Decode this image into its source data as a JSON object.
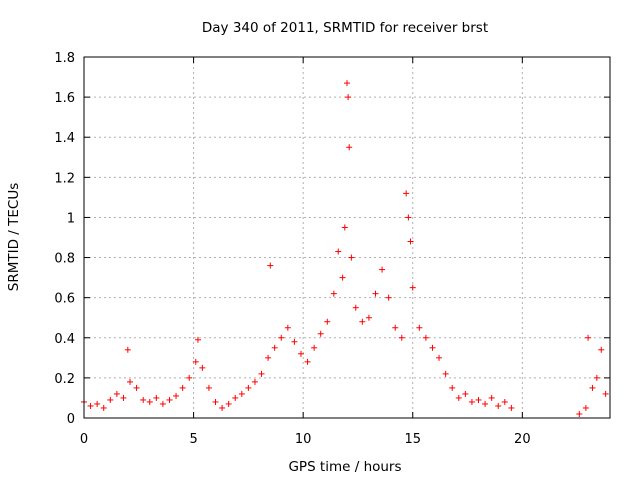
{
  "chart_data": {
    "type": "scatter",
    "title": "Day 340 of 2011, SRMTID for receiver brst",
    "xlabel": "GPS time / hours",
    "ylabel": "SRMTID / TECUs",
    "xlim": [
      0,
      24
    ],
    "ylim": [
      0,
      1.8
    ],
    "xticks": [
      0,
      5,
      10,
      15,
      20
    ],
    "xtick_labels": [
      "0",
      "5",
      "10",
      "15",
      "20"
    ],
    "yticks": [
      0,
      0.2,
      0.4,
      0.6,
      0.8,
      1,
      1.2,
      1.4,
      1.6,
      1.8
    ],
    "ytick_labels": [
      "0",
      "0.2",
      "0.4",
      "0.6",
      "0.8",
      "1",
      "1.2",
      "1.4",
      "1.6",
      "1.8"
    ],
    "grid": true,
    "marker": "+",
    "color": "#ff0000",
    "series": [
      {
        "name": "brst",
        "x": [
          0.0,
          0.3,
          0.6,
          0.9,
          1.2,
          1.5,
          1.8,
          2.0,
          2.1,
          2.4,
          2.7,
          3.0,
          3.3,
          3.6,
          3.9,
          4.2,
          4.5,
          4.8,
          5.1,
          5.2,
          5.4,
          5.7,
          6.0,
          6.3,
          6.6,
          6.9,
          7.2,
          7.5,
          7.8,
          8.1,
          8.4,
          8.5,
          8.7,
          9.0,
          9.3,
          9.6,
          9.9,
          10.2,
          10.5,
          10.8,
          11.1,
          11.4,
          11.6,
          11.8,
          11.9,
          12.0,
          12.05,
          12.1,
          12.2,
          12.4,
          12.7,
          13.0,
          13.3,
          13.6,
          13.9,
          14.2,
          14.5,
          14.7,
          14.8,
          14.9,
          15.0,
          15.3,
          15.6,
          15.9,
          16.2,
          16.5,
          16.8,
          17.1,
          17.4,
          17.7,
          18.0,
          18.3,
          18.6,
          18.9,
          19.2,
          19.5,
          22.6,
          22.9,
          23.0,
          23.2,
          23.4,
          23.6,
          23.8
        ],
        "y": [
          0.08,
          0.06,
          0.07,
          0.05,
          0.09,
          0.12,
          0.1,
          0.34,
          0.18,
          0.15,
          0.09,
          0.08,
          0.1,
          0.07,
          0.09,
          0.11,
          0.15,
          0.2,
          0.28,
          0.39,
          0.25,
          0.15,
          0.08,
          0.05,
          0.07,
          0.1,
          0.12,
          0.15,
          0.18,
          0.22,
          0.3,
          0.76,
          0.35,
          0.4,
          0.45,
          0.38,
          0.32,
          0.28,
          0.35,
          0.42,
          0.48,
          0.62,
          0.83,
          0.7,
          0.95,
          1.67,
          1.6,
          1.35,
          0.8,
          0.55,
          0.48,
          0.5,
          0.62,
          0.74,
          0.6,
          0.45,
          0.4,
          1.12,
          1.0,
          0.88,
          0.65,
          0.45,
          0.4,
          0.35,
          0.3,
          0.22,
          0.15,
          0.1,
          0.12,
          0.08,
          0.09,
          0.07,
          0.1,
          0.06,
          0.08,
          0.05,
          0.02,
          0.05,
          0.4,
          0.15,
          0.2,
          0.34,
          0.12
        ]
      }
    ]
  }
}
